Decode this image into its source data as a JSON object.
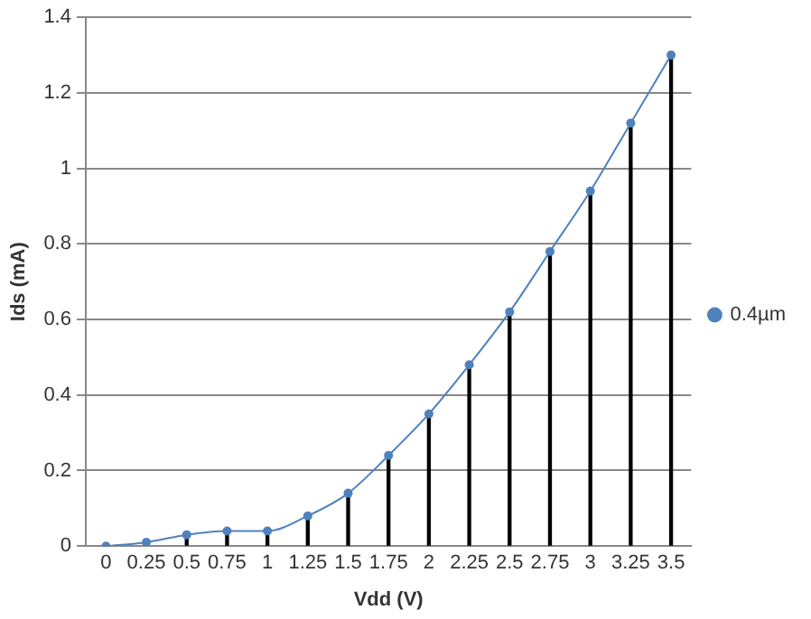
{
  "chart_data": {
    "type": "line",
    "xlabel": "Vdd (V)",
    "ylabel": "Ids (mA)",
    "categories": [
      "0",
      "0.25",
      "0.5",
      "0.75",
      "1",
      "1.25",
      "1.5",
      "1.75",
      "2",
      "2.25",
      "2.5",
      "2.75",
      "3",
      "3.25",
      "3.5"
    ],
    "series": [
      {
        "name": "0.4µm",
        "color": "#4f81bd",
        "values": [
          0,
          0.01,
          0.03,
          0.04,
          0.04,
          0.08,
          0.14,
          0.24,
          0.35,
          0.48,
          0.62,
          0.78,
          0.94,
          1.12,
          1.3
        ]
      },
      {
        "type": "bar",
        "color": "#000000",
        "values": [
          0,
          null,
          0.03,
          0.04,
          0.04,
          0.08,
          0.14,
          0.24,
          0.35,
          0.48,
          0.62,
          0.78,
          0.94,
          1.12,
          1.3
        ]
      }
    ],
    "ylim": [
      0,
      1.4
    ],
    "yticks": [
      0,
      0.2,
      0.4,
      0.6,
      0.8,
      1,
      1.2,
      1.4
    ],
    "grid": "y",
    "legend": "right",
    "marker": "circle"
  }
}
